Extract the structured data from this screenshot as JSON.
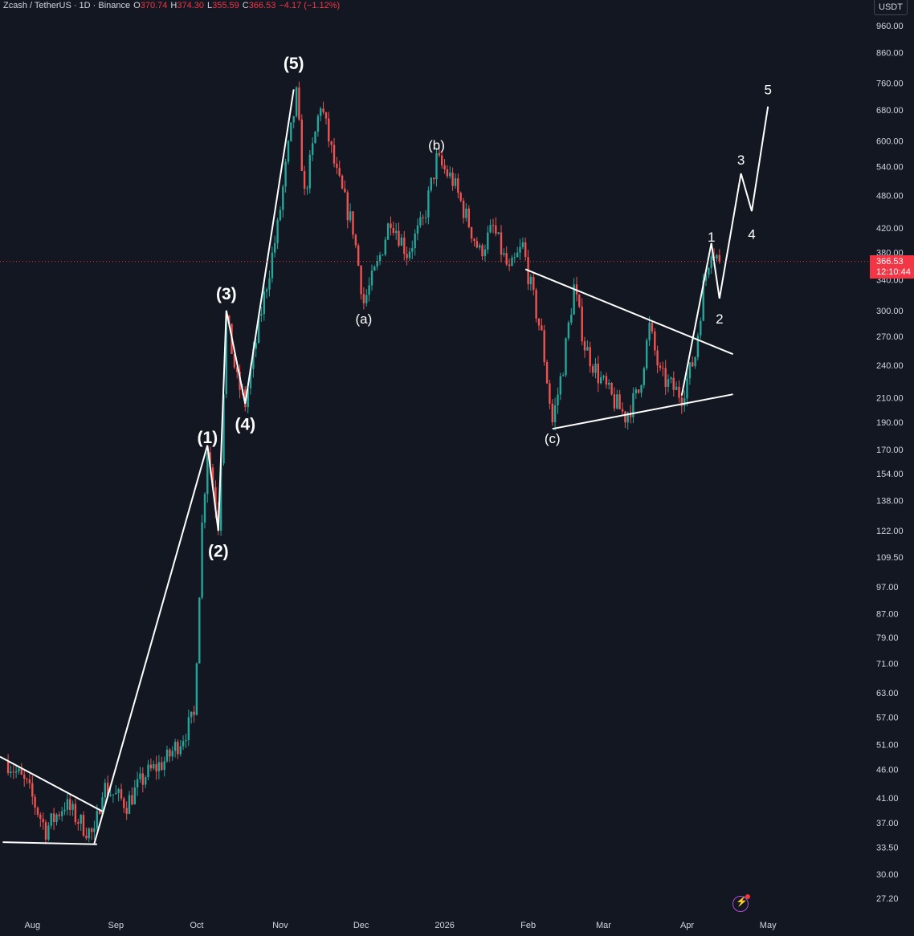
{
  "header": {
    "symbol": "Zcash / TetherUS · 1D · Binance",
    "o_label": "O",
    "o_value": "370.74",
    "h_label": "H",
    "h_value": "374.30",
    "l_label": "L",
    "l_value": "355.59",
    "c_label": "C",
    "c_value": "366.53",
    "change": "−4.17 (−1.12%)"
  },
  "currency": "USDT",
  "current_price": {
    "value": "366.53",
    "countdown": "12:10:44"
  },
  "icons": {
    "bolt": "lightning-bolt-icon"
  },
  "colors": {
    "background": "#131722",
    "up": "#26a69a",
    "down": "#ef5350",
    "lines": "#ffffff",
    "price_tag": "#f23645"
  },
  "chart_data": {
    "type": "candlestick",
    "scale": "log",
    "ylim": [
      26,
      1050
    ],
    "y_ticks": [
      "960.00",
      "860.00",
      "760.00",
      "680.00",
      "600.00",
      "540.00",
      "480.00",
      "420.00",
      "380.00",
      "340.00",
      "300.00",
      "270.00",
      "240.00",
      "210.00",
      "190.00",
      "170.00",
      "154.00",
      "138.00",
      "122.00",
      "109.50",
      "97.00",
      "87.00",
      "79.00",
      "71.00",
      "63.00",
      "57.00",
      "51.00",
      "46.00",
      "41.00",
      "37.00",
      "33.50",
      "30.00",
      "27.20"
    ],
    "x_ticks": [
      "Aug",
      "Sep",
      "Oct",
      "Nov",
      "Dec",
      "2026",
      "Feb",
      "Mar",
      "Apr",
      "May"
    ],
    "x_tick_dates": [
      "2025-08-01",
      "2025-09-01",
      "2025-10-01",
      "2025-11-01",
      "2025-12-01",
      "2026-01-01",
      "2026-02-01",
      "2026-03-01",
      "2026-04-01",
      "2026-05-01"
    ],
    "price_path": [
      [
        "2025-07-23",
        47.5
      ],
      [
        "2025-07-30",
        43
      ],
      [
        "2025-08-06",
        36
      ],
      [
        "2025-08-13",
        40
      ],
      [
        "2025-08-20",
        36.5
      ],
      [
        "2025-08-24",
        35
      ],
      [
        "2025-08-27",
        43
      ],
      [
        "2025-09-05",
        40
      ],
      [
        "2025-09-12",
        45
      ],
      [
        "2025-09-20",
        48
      ],
      [
        "2025-09-25",
        52
      ],
      [
        "2025-09-30",
        57
      ],
      [
        "2025-10-03",
        125
      ],
      [
        "2025-10-05",
        172
      ],
      [
        "2025-10-09",
        126
      ],
      [
        "2025-10-12",
        290
      ],
      [
        "2025-10-16",
        225
      ],
      [
        "2025-10-19",
        205
      ],
      [
        "2025-10-25",
        300
      ],
      [
        "2025-10-31",
        420
      ],
      [
        "2025-11-04",
        580
      ],
      [
        "2025-11-07",
        720
      ],
      [
        "2025-11-10",
        480
      ],
      [
        "2025-11-16",
        700
      ],
      [
        "2025-11-22",
        520
      ],
      [
        "2025-11-28",
        420
      ],
      [
        "2025-12-02",
        310
      ],
      [
        "2025-12-07",
        360
      ],
      [
        "2025-12-12",
        440
      ],
      [
        "2025-12-18",
        380
      ],
      [
        "2025-12-24",
        430
      ],
      [
        "2025-12-29",
        555
      ],
      [
        "2026-01-04",
        510
      ],
      [
        "2026-01-09",
        440
      ],
      [
        "2026-01-14",
        380
      ],
      [
        "2026-01-19",
        420
      ],
      [
        "2026-01-25",
        350
      ],
      [
        "2026-01-30",
        390
      ],
      [
        "2026-02-02",
        330
      ],
      [
        "2026-02-06",
        270
      ],
      [
        "2026-02-10",
        190
      ],
      [
        "2026-02-14",
        240
      ],
      [
        "2026-02-18",
        330
      ],
      [
        "2026-02-22",
        260
      ],
      [
        "2026-02-27",
        230
      ],
      [
        "2026-03-04",
        210
      ],
      [
        "2026-03-09",
        195
      ],
      [
        "2026-03-14",
        215
      ],
      [
        "2026-03-18",
        280
      ],
      [
        "2026-03-22",
        230
      ],
      [
        "2026-03-26",
        220
      ],
      [
        "2026-03-30",
        212
      ],
      [
        "2026-04-04",
        250
      ],
      [
        "2026-04-07",
        330
      ],
      [
        "2026-04-10",
        390
      ],
      [
        "2026-04-13",
        366.53
      ]
    ],
    "wave_labels": [
      {
        "text": "(1)",
        "date": "2025-10-05",
        "price": 178
      },
      {
        "text": "(2)",
        "date": "2025-10-09",
        "price": 112
      },
      {
        "text": "(3)",
        "date": "2025-10-12",
        "price": 320
      },
      {
        "text": "(4)",
        "date": "2025-10-19",
        "price": 188
      },
      {
        "text": "(5)",
        "date": "2025-11-06",
        "price": 820
      },
      {
        "text": "(a)",
        "date": "2025-12-02",
        "price": 290
      },
      {
        "text": "(b)",
        "date": "2025-12-29",
        "price": 590
      },
      {
        "text": "(c)",
        "date": "2026-02-10",
        "price": 178
      },
      {
        "text": "1",
        "date": "2026-04-10",
        "price": 405
      },
      {
        "text": "2",
        "date": "2026-04-13",
        "price": 290
      },
      {
        "text": "3",
        "date": "2026-04-21",
        "price": 555
      },
      {
        "text": "4",
        "date": "2026-04-25",
        "price": 410
      },
      {
        "text": "5",
        "date": "2026-05-01",
        "price": 740
      }
    ],
    "wave_paths": [
      [
        [
          "2025-08-24",
          34
        ],
        [
          "2025-10-05",
          173
        ],
        [
          "2025-10-09",
          122
        ],
        [
          "2025-10-12",
          300
        ],
        [
          "2025-10-19",
          205
        ],
        [
          "2025-11-06",
          740
        ]
      ],
      [
        [
          "2026-03-30",
          212
        ],
        [
          "2026-04-10",
          395
        ],
        [
          "2026-04-13",
          315
        ],
        [
          "2026-04-21",
          525
        ],
        [
          "2026-04-25",
          450
        ],
        [
          "2026-05-01",
          690
        ]
      ]
    ],
    "trendlines": [
      [
        [
          "2025-07-20",
          48.5
        ],
        [
          "2025-08-27",
          38.8
        ]
      ],
      [
        [
          "2025-07-21",
          34.2
        ],
        [
          "2025-08-25",
          33.9
        ]
      ],
      [
        [
          "2026-01-31",
          355
        ],
        [
          "2026-04-18",
          251
        ]
      ],
      [
        [
          "2026-02-10",
          185
        ],
        [
          "2026-04-18",
          213
        ]
      ]
    ]
  }
}
